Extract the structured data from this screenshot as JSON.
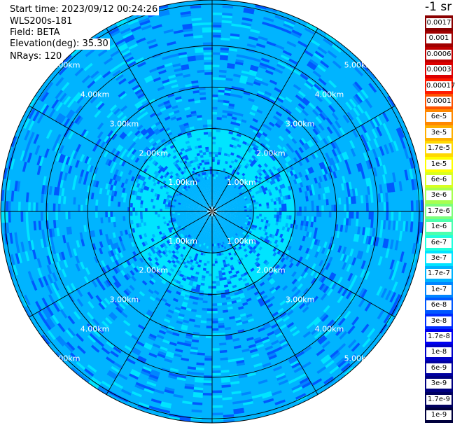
{
  "info": {
    "start_time": "Start time: 2023/09/12 00:24:26",
    "station": "WLS200s-181",
    "field": "Field: BETA",
    "elevation": "Elevation(deg): 35.30",
    "nrays": "NRays: 120"
  },
  "colorbar": {
    "unit": "-1 sr",
    "entries": [
      {
        "label": "0.0017",
        "color": "#8a0000"
      },
      {
        "label": "0.001",
        "color": "#a00000"
      },
      {
        "label": "0.0006",
        "color": "#c00000"
      },
      {
        "label": "0.0003",
        "color": "#dd0000"
      },
      {
        "label": "0.00017",
        "color": "#ff1a00"
      },
      {
        "label": "0.0001",
        "color": "#ff5200"
      },
      {
        "label": "6e-5",
        "color": "#ff8800"
      },
      {
        "label": "3e-5",
        "color": "#ffb000"
      },
      {
        "label": "1.7e-5",
        "color": "#ffd800"
      },
      {
        "label": "1e-5",
        "color": "#ffff00"
      },
      {
        "label": "6e-6",
        "color": "#d8ff20"
      },
      {
        "label": "3e-6",
        "color": "#a8ff50"
      },
      {
        "label": "1.7e-6",
        "color": "#7cff7c"
      },
      {
        "label": "1e-6",
        "color": "#4cffae"
      },
      {
        "label": "6e-7",
        "color": "#22ffdd"
      },
      {
        "label": "3e-7",
        "color": "#00e4ff"
      },
      {
        "label": "1.7e-7",
        "color": "#00b4ff"
      },
      {
        "label": "1e-7",
        "color": "#0086ff"
      },
      {
        "label": "6e-8",
        "color": "#0058ff"
      },
      {
        "label": "3e-8",
        "color": "#002cff"
      },
      {
        "label": "1.7e-8",
        "color": "#0000f0"
      },
      {
        "label": "1e-8",
        "color": "#0000c8"
      },
      {
        "label": "6e-9",
        "color": "#0000a0"
      },
      {
        "label": "3e-9",
        "color": "#000080"
      },
      {
        "label": "1.7e-9",
        "color": "#000060"
      },
      {
        "label": "1e-9",
        "color": "#00003c"
      }
    ]
  },
  "chart_data": {
    "type": "heatmap",
    "projection": "polar (PPI)",
    "field": "BETA",
    "elevation_deg": 35.3,
    "nrays": 120,
    "range_ring_labels": [
      "1.00km",
      "2.00km",
      "3.00km",
      "4.00km",
      "5.00km"
    ],
    "range_rings_km": [
      1,
      2,
      3,
      4,
      5
    ],
    "max_range_km": 5.1,
    "spoke_angles_deg": [
      0,
      30,
      60,
      90,
      120,
      150,
      180,
      210,
      240,
      270,
      300,
      330
    ],
    "radial_profile": [
      {
        "range_km": 0.0,
        "beta": "1.7e-7"
      },
      {
        "range_km": 0.8,
        "beta": "1.7e-7"
      },
      {
        "range_km": 1.0,
        "beta": "3e-7"
      },
      {
        "range_km": 1.5,
        "beta": "3e-7"
      },
      {
        "range_km": 2.0,
        "beta": "1.7e-7"
      },
      {
        "range_km": 3.0,
        "beta": "1.7e-7"
      },
      {
        "range_km": 4.0,
        "beta": "1.7e-7"
      },
      {
        "range_km": 5.0,
        "beta": "1.7e-7"
      }
    ],
    "grid": true
  }
}
